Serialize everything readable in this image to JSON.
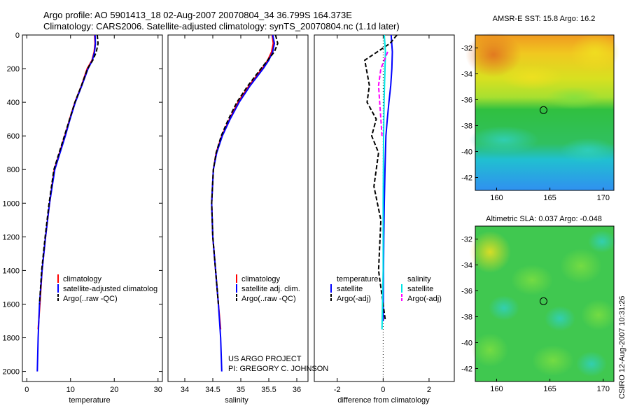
{
  "header": {
    "line1": "Argo profile: AO 5901413_18 02-Aug-2007 20070804_34 36.799S 164.373E",
    "line2": "Climatology: CARS2006. Satellite-adjusted climatology: synTS_20070804.nc (1.1d later)"
  },
  "project": {
    "line1": "US ARGO PROJECT",
    "line2": "PI: GREGORY C. JOHNSON"
  },
  "stamp": "CSIRO 12-Aug-2007 10:31:26",
  "colors": {
    "climatology": "#ff0000",
    "satellite": "#0000ff",
    "argo": "#000000",
    "sal_satellite": "#00e5e5",
    "sal_argo": "#ff00ff"
  },
  "chart_data": [
    {
      "type": "line",
      "xlabel": "temperature",
      "xlim": [
        -1,
        31
      ],
      "xticks": [
        0,
        10,
        20,
        30
      ],
      "ylim": [
        2060,
        0
      ],
      "yticks": [
        0,
        200,
        400,
        600,
        800,
        1000,
        1200,
        1400,
        1600,
        1800,
        2000
      ],
      "legend": [
        "climatology",
        "satellite-adjusted climatolog",
        "Argo(..raw -QC)"
      ],
      "series": [
        {
          "name": "climatology",
          "style": "solid",
          "color": "#ff0000",
          "x": [
            15.5,
            15.6,
            15.4,
            14.9,
            13.8,
            12.5,
            11.0,
            9.8,
            8.7,
            7.5,
            6.3,
            5.2,
            4.3,
            3.5,
            3.0,
            2.6
          ],
          "y": [
            0,
            50,
            100,
            150,
            200,
            300,
            400,
            500,
            600,
            700,
            800,
            1000,
            1200,
            1400,
            1600,
            1750
          ]
        },
        {
          "name": "satellite-adjusted climatolog",
          "style": "solid",
          "color": "#0000ff",
          "x": [
            15.6,
            15.7,
            15.5,
            15.0,
            14.0,
            12.6,
            11.1,
            9.9,
            8.8,
            7.6,
            6.4,
            5.2,
            4.3,
            3.5,
            2.9,
            2.6,
            2.4
          ],
          "y": [
            0,
            50,
            100,
            150,
            200,
            300,
            400,
            500,
            600,
            700,
            800,
            1000,
            1200,
            1400,
            1600,
            1800,
            2000
          ]
        },
        {
          "name": "Argo(..raw -QC)",
          "style": "dashed",
          "color": "#000000",
          "x": [
            16.1,
            16.3,
            15.9,
            15.1,
            13.9,
            12.5,
            11.0,
            9.8,
            8.6,
            7.4,
            6.2,
            5.1,
            4.2,
            3.4,
            2.9
          ],
          "y": [
            0,
            50,
            100,
            150,
            200,
            300,
            400,
            500,
            600,
            700,
            800,
            1000,
            1200,
            1400,
            1600
          ]
        }
      ]
    },
    {
      "type": "line",
      "xlabel": "salinity",
      "xlim": [
        33.7,
        36.2
      ],
      "xticks": [
        34,
        34.5,
        35,
        35.5,
        36
      ],
      "ylim": [
        2060,
        0
      ],
      "legend": [
        "climatology",
        "satellite adj. clim.",
        "Argo(..raw -QC)"
      ],
      "series": [
        {
          "name": "climatology",
          "style": "solid",
          "color": "#ff0000",
          "x": [
            35.56,
            35.58,
            35.55,
            35.48,
            35.38,
            35.15,
            34.95,
            34.8,
            34.66,
            34.56,
            34.51,
            34.48,
            34.5,
            34.55,
            34.6,
            34.64
          ],
          "y": [
            0,
            50,
            100,
            150,
            200,
            300,
            400,
            500,
            600,
            700,
            800,
            1000,
            1200,
            1400,
            1600,
            1750
          ]
        },
        {
          "name": "satellite adj. clim.",
          "style": "solid",
          "color": "#0000ff",
          "x": [
            35.57,
            35.6,
            35.57,
            35.5,
            35.4,
            35.17,
            34.97,
            34.81,
            34.67,
            34.57,
            34.51,
            34.48,
            34.5,
            34.55,
            34.6,
            34.64,
            34.66
          ],
          "y": [
            0,
            50,
            100,
            150,
            200,
            300,
            400,
            500,
            600,
            700,
            800,
            1000,
            1200,
            1400,
            1600,
            1800,
            2000
          ]
        },
        {
          "name": "Argo(..raw -QC)",
          "style": "dashed",
          "color": "#000000",
          "x": [
            35.62,
            35.66,
            35.6,
            35.48,
            35.36,
            35.13,
            34.93,
            34.78,
            34.65,
            34.56,
            34.51,
            34.48,
            34.5,
            34.55,
            34.6
          ],
          "y": [
            0,
            50,
            100,
            150,
            200,
            300,
            400,
            500,
            600,
            700,
            800,
            1000,
            1200,
            1400,
            1600
          ]
        }
      ]
    },
    {
      "type": "line",
      "xlabel": "difference from climatology",
      "xlim": [
        -3,
        3.1
      ],
      "xticks": [
        -2,
        0,
        2
      ],
      "ylim": [
        2060,
        0
      ],
      "legend_title_left": "temperature",
      "legend_title_right": "salinity",
      "legend": [
        "satellite",
        "Argo(-adj)",
        "satellite",
        "Argo(-adj)"
      ],
      "series": [
        {
          "name": "satellite",
          "group": "temperature",
          "style": "solid",
          "color": "#0000ff",
          "x": [
            0.35,
            0.4,
            0.38,
            0.33,
            0.25,
            0.18,
            0.12,
            0.08,
            0.05,
            0.03,
            0.01,
            0.0
          ],
          "y": [
            0,
            100,
            200,
            300,
            400,
            500,
            600,
            800,
            1000,
            1200,
            1500,
            1700
          ]
        },
        {
          "name": "Argo(-adj)",
          "group": "temperature",
          "style": "dashed",
          "color": "#000000",
          "x": [
            0.6,
            0.3,
            -0.8,
            -0.6,
            -0.7,
            -0.3,
            -0.5,
            -0.2,
            -0.4,
            -0.1,
            -0.2,
            0.1
          ],
          "y": [
            0,
            50,
            150,
            300,
            400,
            500,
            600,
            700,
            900,
            1100,
            1400,
            1700
          ]
        },
        {
          "name": "satellite",
          "group": "salinity",
          "style": "solid",
          "color": "#00e5e5",
          "x": [
            0.05,
            0.1,
            0.08,
            0.06,
            0.04,
            0.02,
            0.01,
            0.0,
            0.0,
            -0.05
          ],
          "y": [
            0,
            100,
            200,
            300,
            400,
            600,
            800,
            1000,
            1400,
            1750
          ]
        },
        {
          "name": "Argo(-adj)",
          "group": "salinity",
          "style": "dashed",
          "color": "#ff00ff",
          "x": [
            0.2,
            0.05,
            -0.1,
            -0.2,
            -0.15,
            -0.1,
            -0.05
          ],
          "y": [
            100,
            150,
            200,
            300,
            400,
            500,
            600
          ]
        }
      ]
    },
    {
      "type": "heatmap",
      "title": "AMSR-E SST: 15.8 Argo: 16.2",
      "xlim": [
        158,
        171
      ],
      "xticks": [
        160,
        165,
        170
      ],
      "ylim": [
        -43,
        -31
      ],
      "yticks": [
        -32,
        -34,
        -36,
        -38,
        -40,
        -42
      ],
      "marker": {
        "lon": 164.4,
        "lat": -36.8
      }
    },
    {
      "type": "heatmap",
      "title": "Altimetric SLA: 0.037 Argo: -0.048",
      "xlim": [
        158,
        171
      ],
      "xticks": [
        160,
        165,
        170
      ],
      "ylim": [
        -43,
        -31
      ],
      "yticks": [
        -32,
        -34,
        -36,
        -38,
        -40,
        -42
      ],
      "marker": {
        "lon": 164.4,
        "lat": -36.8
      }
    }
  ]
}
